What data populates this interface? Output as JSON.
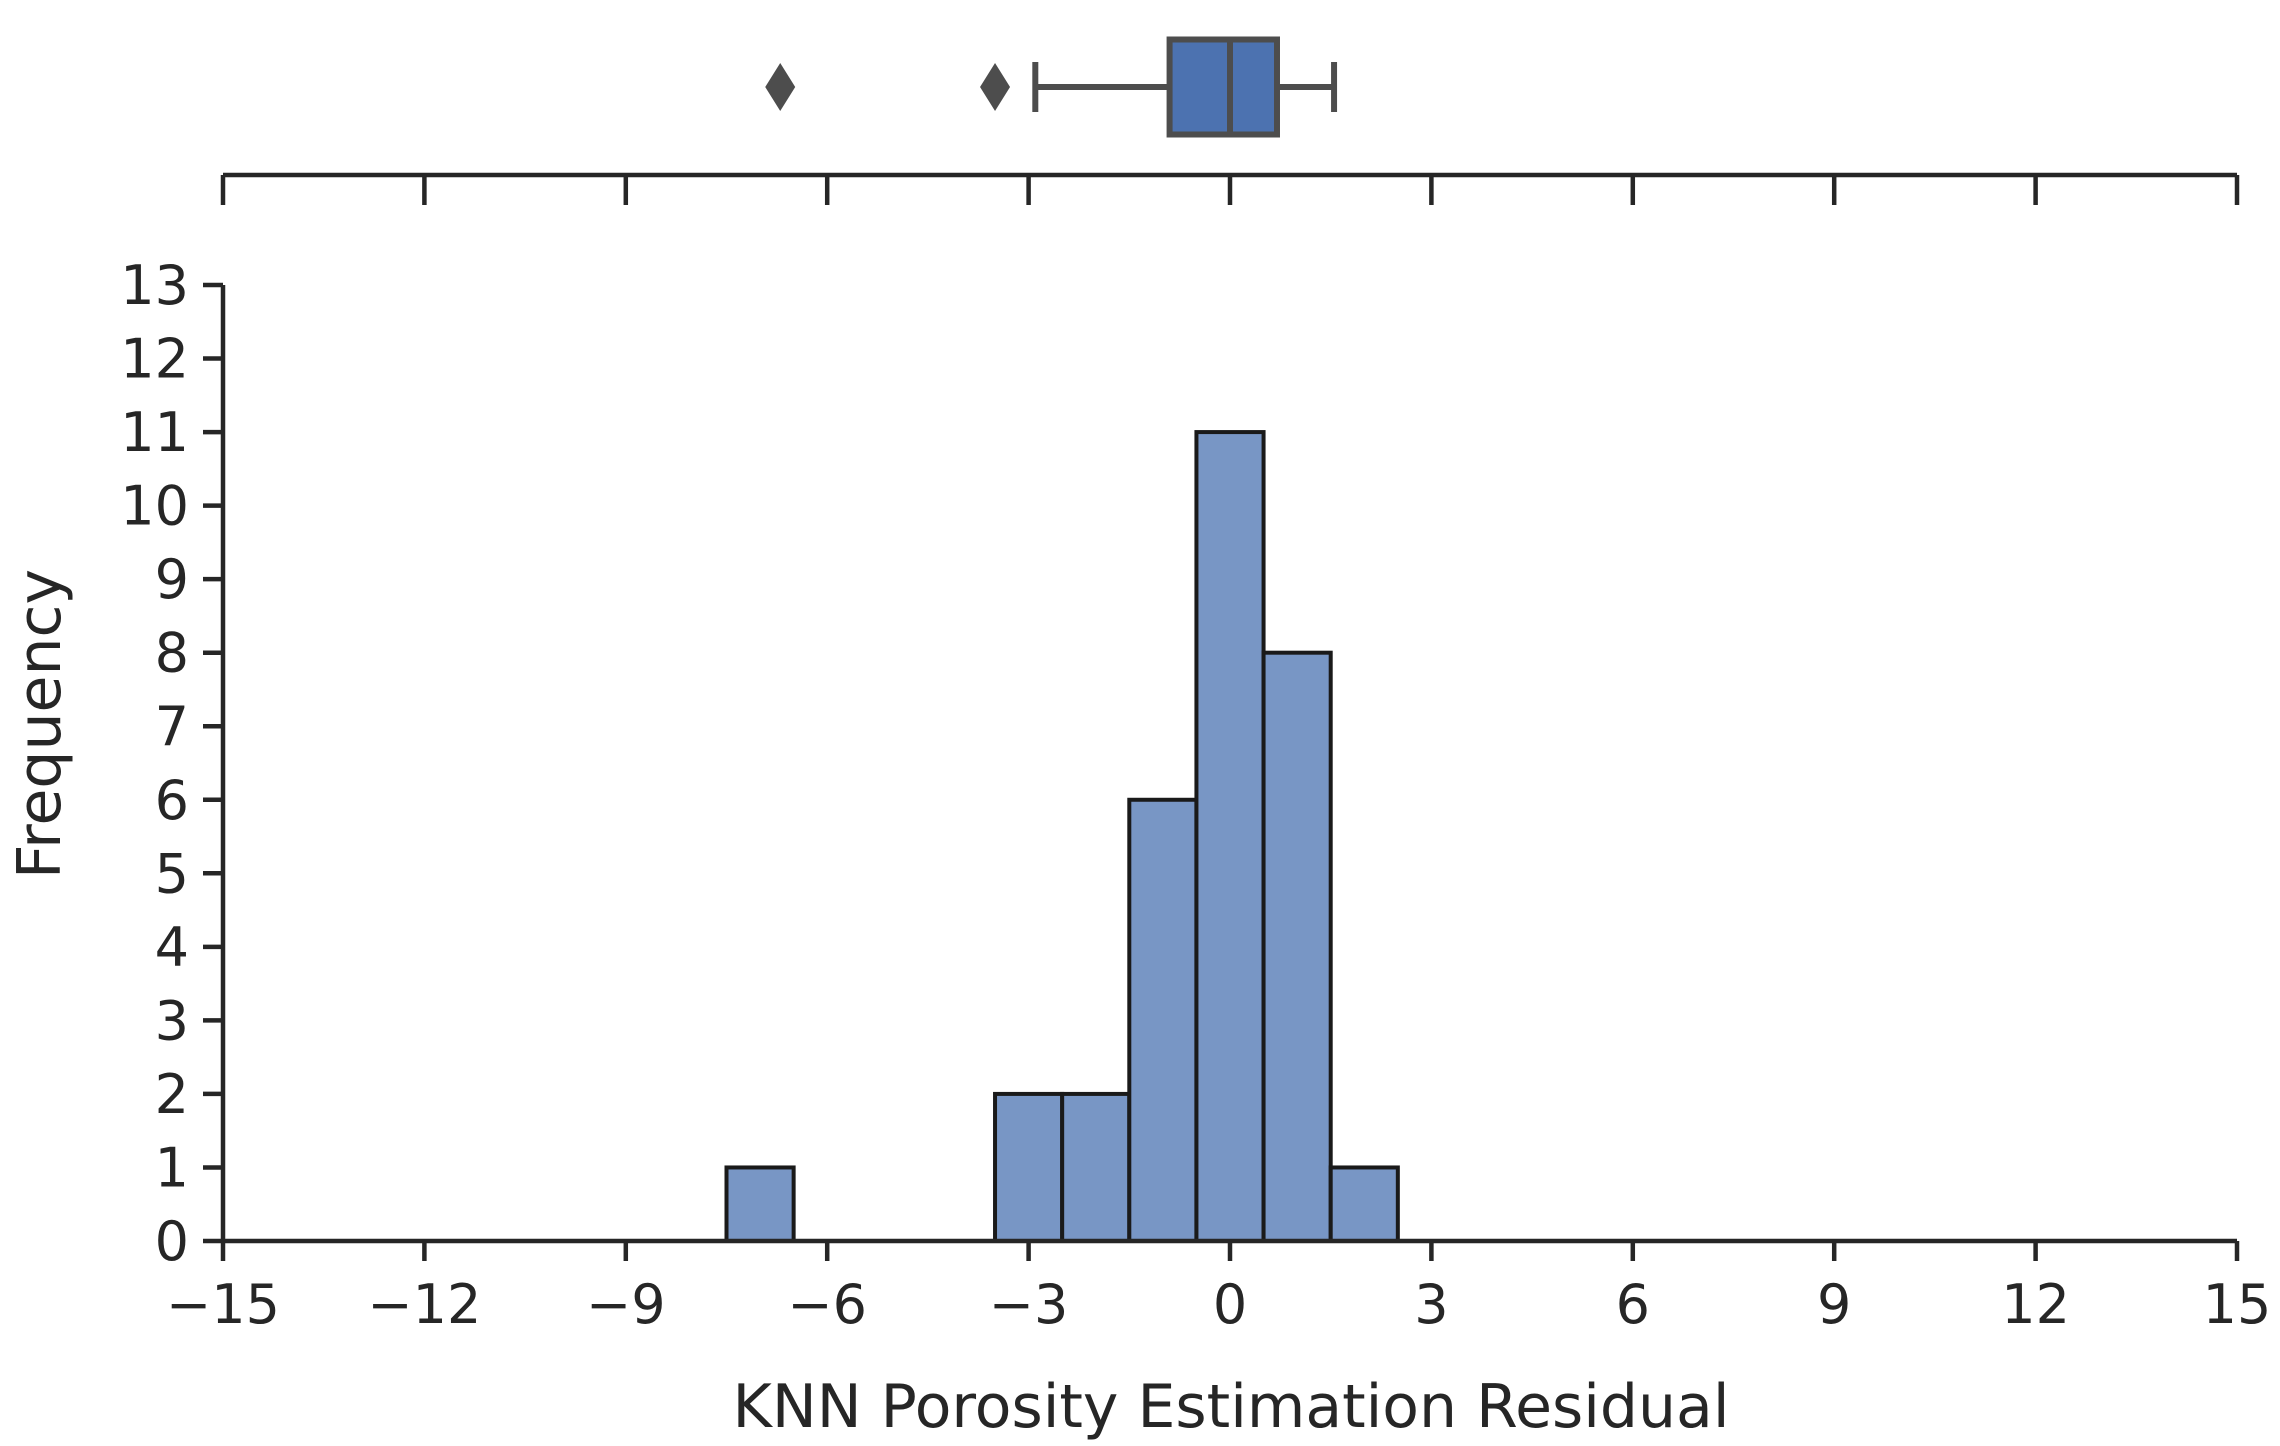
{
  "chart_data": [
    {
      "type": "box",
      "panel": "top",
      "series_color": "#4c72b0",
      "box": {
        "q1": -0.9,
        "median": 0.0,
        "q3": 0.7,
        "whisker_low": -2.9,
        "whisker_high": 1.55
      },
      "outliers": [
        -6.7,
        -3.5
      ],
      "xlim": [
        -15,
        15
      ],
      "x_ticks": [
        -15,
        -12,
        -9,
        -6,
        -3,
        0,
        3,
        6,
        9,
        12,
        15
      ]
    },
    {
      "type": "bar",
      "panel": "bottom",
      "series_color": "#7896c5",
      "bins": [
        {
          "left": -7.5,
          "right": -6.5,
          "count": 1
        },
        {
          "left": -3.5,
          "right": -2.5,
          "count": 2
        },
        {
          "left": -2.5,
          "right": -1.5,
          "count": 2
        },
        {
          "left": -1.5,
          "right": -0.5,
          "count": 6
        },
        {
          "left": -0.5,
          "right": 0.5,
          "count": 11
        },
        {
          "left": 0.5,
          "right": 1.5,
          "count": 8
        },
        {
          "left": 1.5,
          "right": 2.5,
          "count": 1
        }
      ],
      "xlabel": "KNN Porosity Estimation Residual",
      "ylabel": "Frequency",
      "xlim": [
        -15,
        15
      ],
      "ylim": [
        0,
        13
      ],
      "x_ticks": [
        -15,
        -12,
        -9,
        -6,
        -3,
        0,
        3,
        6,
        9,
        12,
        15
      ],
      "x_tick_labels": [
        "−15",
        "−12",
        "−9",
        "−6",
        "−3",
        "0",
        "3",
        "6",
        "9",
        "12",
        "15"
      ],
      "y_ticks": [
        0,
        1,
        2,
        3,
        4,
        5,
        6,
        7,
        8,
        9,
        10,
        11,
        12,
        13
      ],
      "y_tick_labels": [
        "0",
        "1",
        "2",
        "3",
        "4",
        "5",
        "6",
        "7",
        "8",
        "9",
        "10",
        "11",
        "12",
        "13"
      ],
      "grid": false
    }
  ]
}
